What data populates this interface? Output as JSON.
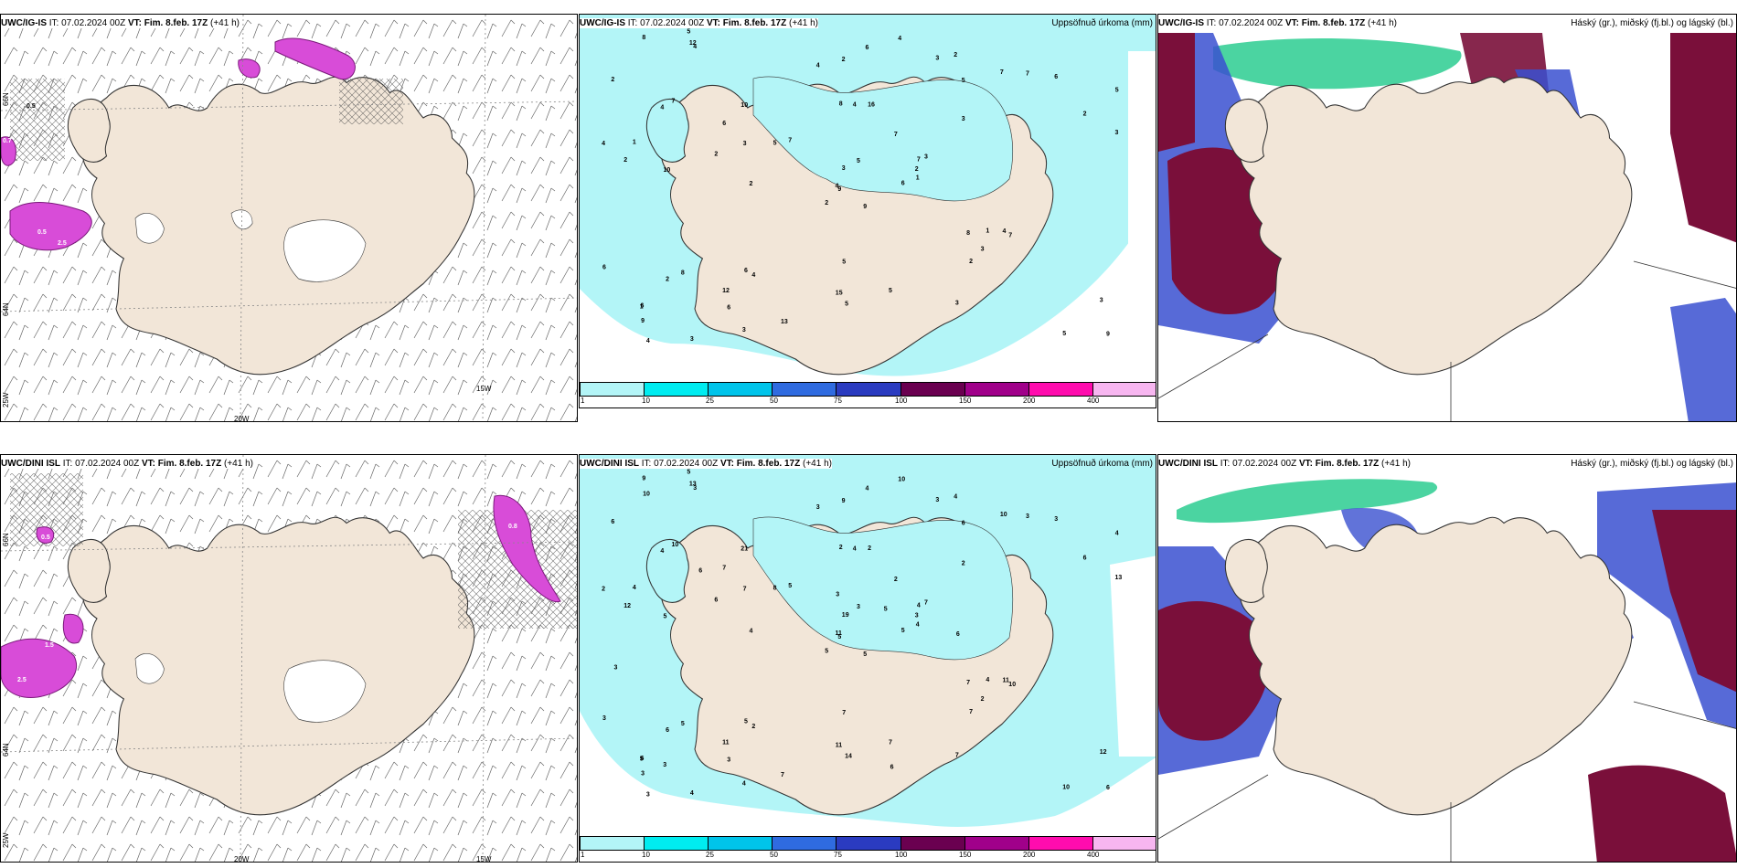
{
  "panels": [
    {
      "title_model": "UWC/IG-IS",
      "title_rest": "IT: 07.02.2024 00Z",
      "title_vt_label": "VT:",
      "title_vt": "Fim. 8.feb. 17Z",
      "title_lead": "(+41 h)",
      "label": ""
    },
    {
      "title_model": "UWC/IG-IS",
      "title_rest": "IT: 07.02.2024 00Z",
      "title_vt_label": "VT:",
      "title_vt": "Fim. 8.feb. 17Z",
      "title_lead": "(+41 h)",
      "label": "Uppsöfnuð úrkoma (mm)"
    },
    {
      "title_model": "UWC/IG-IS",
      "title_rest": "IT: 07.02.2024 00Z",
      "title_vt_label": "VT:",
      "title_vt": "Fim. 8.feb. 17Z",
      "title_lead": "(+41 h)",
      "label": "Háský (gr.), miðský (fj.bl.) og lágský (bl.)"
    },
    {
      "title_model": "UWC/DINI ISL",
      "title_rest": "IT: 07.02.2024 00Z",
      "title_vt_label": "VT:",
      "title_vt": "Fim. 8.feb. 17Z",
      "title_lead": "(+41 h)",
      "label": ""
    },
    {
      "title_model": "UWC/DINI ISL",
      "title_rest": "IT: 07.02.2024 00Z",
      "title_vt_label": "VT:",
      "title_vt": "Fim. 8.feb. 17Z",
      "title_lead": "(+41 h)",
      "label": "Uppsöfnuð úrkoma (mm)"
    },
    {
      "title_model": "UWC/DINI ISL",
      "title_rest": "IT: 07.02.2024 00Z",
      "title_vt_label": "VT:",
      "title_vt": "Fim. 8.feb. 17Z",
      "title_lead": "(+41 h)",
      "label": "Háský (gr.), miðský (fj.bl.) og lágský (bl.)"
    }
  ],
  "axis_labels": {
    "lon20": "20W",
    "lon15": "15W",
    "lat66": "66N",
    "lat64": "64N",
    "lon25": "25W"
  },
  "precip_legend": {
    "ticks": [
      "1",
      "10",
      "25",
      "50",
      "75",
      "100",
      "150",
      "200",
      "400"
    ],
    "colors": [
      "#b3f5f7",
      "#00ecf0",
      "#00c4ea",
      "#2f6be0",
      "#2a3bc0",
      "#6a0050",
      "#a0008a",
      "#ff0cae",
      "#f7b6f0"
    ]
  },
  "colors": {
    "land": "#f2e6d8",
    "precip_light": "#b3f5f7",
    "precip_mid": "#00e5ee",
    "magenta": "#d84cd8",
    "cloud_high": "#1ec98a",
    "cloud_mid": "#3a50d0",
    "cloud_low": "#7a0f3a"
  },
  "precip_values_top": [
    "9",
    "4",
    "9",
    "6",
    "7",
    "4",
    "2",
    "16",
    "5",
    "6",
    "4",
    "9",
    "10",
    "5",
    "2",
    "3",
    "3",
    "8",
    "7",
    "8",
    "7",
    "9",
    "6",
    "4",
    "3",
    "7",
    "7",
    "2",
    "2",
    "8",
    "3",
    "4",
    "15",
    "3",
    "10",
    "7",
    "6",
    "5",
    "3",
    "4",
    "4",
    "5",
    "2",
    "2",
    "3",
    "4",
    "2",
    "4",
    "5",
    "1",
    "2",
    "2",
    "2",
    "3",
    "3",
    "12",
    "12",
    "8",
    "5",
    "6",
    "6",
    "2",
    "1",
    "6",
    "7",
    "5",
    "3",
    "4",
    "5",
    "6",
    "5",
    "13",
    "1",
    "3",
    "1"
  ],
  "precip_values_bottom": [
    "5",
    "4",
    "5",
    "6",
    "4",
    "2",
    "4",
    "2",
    "6",
    "5",
    "3",
    "6",
    "5",
    "4",
    "5",
    "2",
    "4",
    "2",
    "2",
    "5",
    "5",
    "3",
    "3",
    "4",
    "7",
    "10",
    "10",
    "9",
    "12",
    "7",
    "13",
    "11",
    "11",
    "19",
    "21",
    "10",
    "5",
    "10",
    "12",
    "11",
    "10",
    "8",
    "6",
    "7",
    "4",
    "2",
    "3",
    "3",
    "14",
    "4",
    "6",
    "6",
    "6",
    "2",
    "7",
    "11",
    "13",
    "9",
    "7",
    "3",
    "4",
    "4",
    "4",
    "7",
    "3",
    "5",
    "3",
    "3",
    "3",
    "3",
    "7",
    "7",
    "4",
    "7",
    "5",
    "10",
    "6",
    "3",
    "3",
    "6",
    "5",
    "3",
    "6"
  ],
  "magenta_labels": [
    "0.7",
    "2.5",
    "0.5",
    "0.5",
    "2.5",
    "0.9",
    "1.6",
    "0.8",
    "0.6",
    "2.5",
    "1.5",
    "0.8",
    "0.5"
  ]
}
